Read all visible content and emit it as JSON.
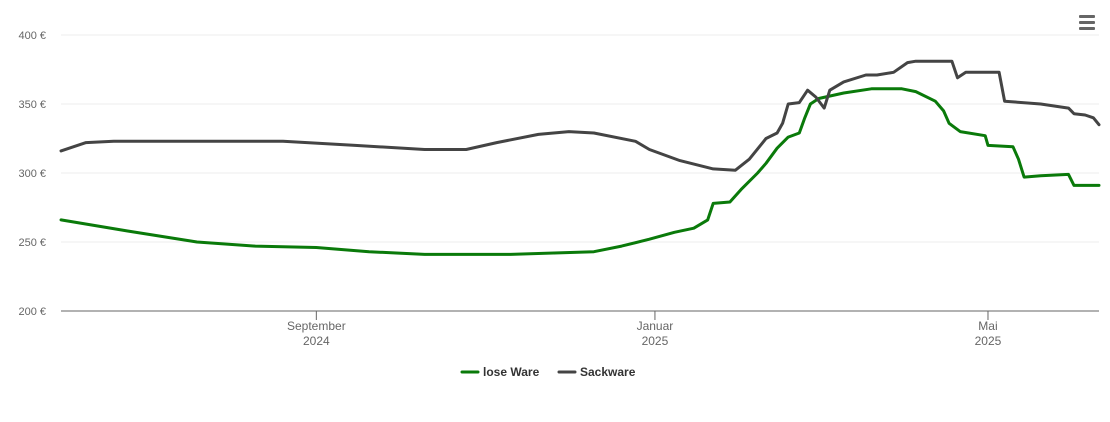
{
  "menu_icon": "hamburger-menu-icon",
  "chart_data": {
    "type": "line",
    "title": "",
    "xlabel": "",
    "ylabel": "",
    "y_unit": "€",
    "ylim": [
      200,
      400
    ],
    "yticks": [
      200,
      250,
      300,
      350,
      400
    ],
    "xlim": [
      "2024-06-01",
      "2025-06-10"
    ],
    "xticks": [
      {
        "date": "2024-09-01",
        "line1": "September",
        "line2": "2024"
      },
      {
        "date": "2025-01-01",
        "line1": "Januar",
        "line2": "2025"
      },
      {
        "date": "2025-05-01",
        "line1": "Mai",
        "line2": "2025"
      }
    ],
    "grid": true,
    "legend_position": "bottom-center",
    "series": [
      {
        "name": "lose Ware",
        "color": "#0a7a0a",
        "points": [
          [
            "2024-06-01",
            266
          ],
          [
            "2024-06-25",
            258
          ],
          [
            "2024-07-20",
            250
          ],
          [
            "2024-08-10",
            247
          ],
          [
            "2024-09-01",
            246
          ],
          [
            "2024-09-20",
            243
          ],
          [
            "2024-10-10",
            241
          ],
          [
            "2024-11-10",
            241
          ],
          [
            "2024-12-10",
            243
          ],
          [
            "2024-12-20",
            247
          ],
          [
            "2024-12-30",
            252
          ],
          [
            "2025-01-08",
            257
          ],
          [
            "2025-01-15",
            260
          ],
          [
            "2025-01-20",
            266
          ],
          [
            "2025-01-22",
            278
          ],
          [
            "2025-01-28",
            279
          ],
          [
            "2025-02-01",
            288
          ],
          [
            "2025-02-07",
            300
          ],
          [
            "2025-02-10",
            307
          ],
          [
            "2025-02-14",
            318
          ],
          [
            "2025-02-18",
            326
          ],
          [
            "2025-02-22",
            329
          ],
          [
            "2025-02-24",
            340
          ],
          [
            "2025-02-26",
            350
          ],
          [
            "2025-03-01",
            354
          ],
          [
            "2025-03-10",
            358
          ],
          [
            "2025-03-20",
            361
          ],
          [
            "2025-03-31",
            361
          ],
          [
            "2025-04-05",
            359
          ],
          [
            "2025-04-12",
            352
          ],
          [
            "2025-04-15",
            345
          ],
          [
            "2025-04-17",
            336
          ],
          [
            "2025-04-21",
            330
          ],
          [
            "2025-04-30",
            327
          ],
          [
            "2025-05-01",
            320
          ],
          [
            "2025-05-10",
            319
          ],
          [
            "2025-05-12",
            310
          ],
          [
            "2025-05-14",
            297
          ],
          [
            "2025-05-20",
            298
          ],
          [
            "2025-05-30",
            299
          ],
          [
            "2025-06-01",
            291
          ],
          [
            "2025-06-10",
            291
          ]
        ]
      },
      {
        "name": "Sackware",
        "color": "#444444",
        "points": [
          [
            "2024-06-01",
            316
          ],
          [
            "2024-06-10",
            322
          ],
          [
            "2024-06-20",
            323
          ],
          [
            "2024-07-20",
            323
          ],
          [
            "2024-08-20",
            323
          ],
          [
            "2024-09-15",
            320
          ],
          [
            "2024-10-10",
            317
          ],
          [
            "2024-10-25",
            317
          ],
          [
            "2024-11-05",
            322
          ],
          [
            "2024-11-20",
            328
          ],
          [
            "2024-12-01",
            330
          ],
          [
            "2024-12-10",
            329
          ],
          [
            "2024-12-25",
            323
          ],
          [
            "2024-12-30",
            317
          ],
          [
            "2025-01-10",
            309
          ],
          [
            "2025-01-22",
            303
          ],
          [
            "2025-01-30",
            302
          ],
          [
            "2025-02-04",
            310
          ],
          [
            "2025-02-10",
            325
          ],
          [
            "2025-02-14",
            329
          ],
          [
            "2025-02-16",
            336
          ],
          [
            "2025-02-18",
            350
          ],
          [
            "2025-02-22",
            351
          ],
          [
            "2025-02-25",
            360
          ],
          [
            "2025-02-28",
            355
          ],
          [
            "2025-03-03",
            347
          ],
          [
            "2025-03-05",
            360
          ],
          [
            "2025-03-10",
            366
          ],
          [
            "2025-03-18",
            371
          ],
          [
            "2025-03-22",
            371
          ],
          [
            "2025-03-28",
            373
          ],
          [
            "2025-04-02",
            380
          ],
          [
            "2025-04-05",
            381
          ],
          [
            "2025-04-18",
            381
          ],
          [
            "2025-04-20",
            369
          ],
          [
            "2025-04-23",
            373
          ],
          [
            "2025-05-05",
            373
          ],
          [
            "2025-05-07",
            352
          ],
          [
            "2025-05-20",
            350
          ],
          [
            "2025-05-30",
            347
          ],
          [
            "2025-06-01",
            343
          ],
          [
            "2025-06-05",
            342
          ],
          [
            "2025-06-08",
            340
          ],
          [
            "2025-06-10",
            335
          ]
        ]
      }
    ]
  }
}
